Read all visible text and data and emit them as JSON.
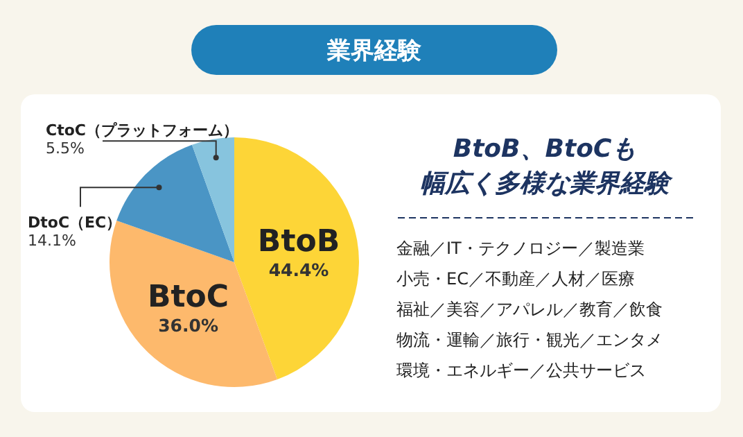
{
  "chart_data": {
    "type": "pie",
    "title": "業界経験",
    "subtitle": "BtoB、BtoCも幅広く多様な業界経験",
    "categories": [
      "BtoB",
      "BtoC",
      "DtoC（EC）",
      "CtoC（プラットフォーム）"
    ],
    "values": [
      44.4,
      36.0,
      14.1,
      5.5
    ],
    "value_labels": [
      "44.4%",
      "36.0%",
      "14.1%",
      "5.5%"
    ],
    "colors": [
      "#fdd537",
      "#fdb96c",
      "#4a95c5",
      "#87c4de"
    ],
    "annotations": [
      "金融／IT・テクノロジー／製造業",
      "小売・EC／不動産／人材／医療",
      "福祉／美容／アパレル／教育／飲食",
      "物流・運輸／旅行・観光／エンタメ",
      "環境・エネルギー／公共サービス"
    ],
    "legend": false
  }
}
